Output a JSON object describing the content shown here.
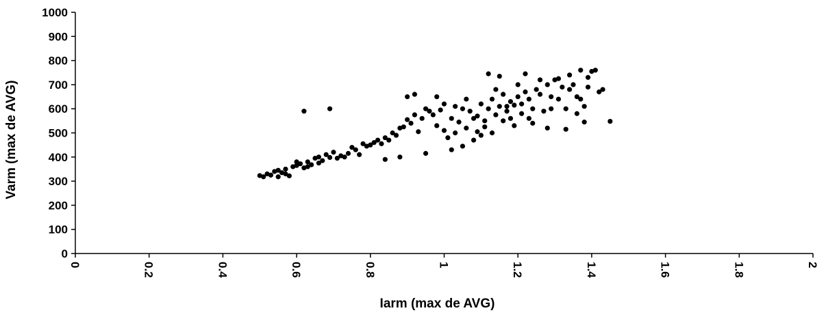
{
  "chart_data": {
    "type": "scatter",
    "title": "",
    "xlabel": "Iarm (max de AVG)",
    "ylabel": "Varm (max de AVG)",
    "xlim": [
      0,
      2
    ],
    "ylim": [
      0,
      1000
    ],
    "xticks": [
      "0",
      "0.2",
      "0.4",
      "0.6",
      "0.8",
      "1",
      "1.2",
      "1.4",
      "1.6",
      "1.8",
      "2"
    ],
    "yticks": [
      "0",
      "100",
      "200",
      "300",
      "400",
      "500",
      "600",
      "700",
      "800",
      "900",
      "1000"
    ],
    "grid": false,
    "legend": "none",
    "marker_color": "#000000",
    "points": [
      [
        0.5,
        323
      ],
      [
        0.51,
        318
      ],
      [
        0.52,
        330
      ],
      [
        0.53,
        325
      ],
      [
        0.54,
        340
      ],
      [
        0.55,
        318
      ],
      [
        0.56,
        335
      ],
      [
        0.57,
        350
      ],
      [
        0.58,
        322
      ],
      [
        0.59,
        360
      ],
      [
        0.6,
        365
      ],
      [
        0.61,
        372
      ],
      [
        0.62,
        355
      ],
      [
        0.63,
        380
      ],
      [
        0.64,
        368
      ],
      [
        0.65,
        395
      ],
      [
        0.66,
        400
      ],
      [
        0.67,
        385
      ],
      [
        0.68,
        410
      ],
      [
        0.69,
        398
      ],
      [
        0.7,
        420
      ],
      [
        0.72,
        405
      ],
      [
        0.74,
        415
      ],
      [
        0.75,
        440
      ],
      [
        0.76,
        430
      ],
      [
        0.78,
        455
      ],
      [
        0.8,
        450
      ],
      [
        0.82,
        470
      ],
      [
        0.84,
        480
      ],
      [
        0.86,
        500
      ],
      [
        0.88,
        520
      ],
      [
        0.9,
        555
      ],
      [
        0.92,
        575
      ],
      [
        0.94,
        560
      ],
      [
        0.95,
        600
      ],
      [
        0.96,
        590
      ],
      [
        0.98,
        530
      ],
      [
        1.0,
        510
      ],
      [
        1.01,
        480
      ],
      [
        1.02,
        560
      ],
      [
        1.03,
        610
      ],
      [
        1.04,
        545
      ],
      [
        1.05,
        600
      ],
      [
        1.06,
        520
      ],
      [
        1.07,
        590
      ],
      [
        1.08,
        560
      ],
      [
        1.09,
        505
      ],
      [
        1.1,
        620
      ],
      [
        1.11,
        550
      ],
      [
        1.12,
        600
      ],
      [
        1.13,
        640
      ],
      [
        1.14,
        575
      ],
      [
        1.15,
        610
      ],
      [
        1.16,
        660
      ],
      [
        1.17,
        590
      ],
      [
        1.18,
        630
      ],
      [
        1.19,
        615
      ],
      [
        1.2,
        650
      ],
      [
        1.21,
        580
      ],
      [
        1.22,
        670
      ],
      [
        1.23,
        640
      ],
      [
        1.24,
        600
      ],
      [
        1.25,
        680
      ],
      [
        1.26,
        660
      ],
      [
        1.27,
        590
      ],
      [
        1.28,
        700
      ],
      [
        1.29,
        650
      ],
      [
        1.3,
        720
      ],
      [
        1.31,
        640
      ],
      [
        1.32,
        690
      ],
      [
        1.33,
        600
      ],
      [
        1.34,
        740
      ],
      [
        1.35,
        700
      ],
      [
        1.36,
        650
      ],
      [
        1.37,
        760
      ],
      [
        1.38,
        610
      ],
      [
        1.39,
        730
      ],
      [
        1.4,
        755
      ],
      [
        1.42,
        670
      ],
      [
        1.45,
        548
      ],
      [
        0.62,
        590
      ],
      [
        0.69,
        600
      ],
      [
        0.84,
        390
      ],
      [
        0.88,
        400
      ],
      [
        0.9,
        650
      ],
      [
        0.92,
        660
      ],
      [
        0.95,
        415
      ],
      [
        1.02,
        430
      ],
      [
        1.05,
        445
      ],
      [
        1.12,
        745
      ],
      [
        1.15,
        735
      ],
      [
        1.22,
        745
      ],
      [
        1.28,
        520
      ],
      [
        1.33,
        515
      ],
      [
        1.38,
        545
      ],
      [
        1.36,
        580
      ],
      [
        1.18,
        560
      ],
      [
        1.08,
        470
      ],
      [
        0.98,
        650
      ],
      [
        1.24,
        540
      ],
      [
        0.55,
        345
      ],
      [
        0.57,
        330
      ],
      [
        0.6,
        380
      ],
      [
        0.63,
        360
      ],
      [
        0.66,
        375
      ],
      [
        0.71,
        395
      ],
      [
        0.73,
        400
      ],
      [
        0.77,
        410
      ],
      [
        0.79,
        445
      ],
      [
        0.81,
        460
      ],
      [
        0.83,
        455
      ],
      [
        0.85,
        470
      ],
      [
        0.87,
        490
      ],
      [
        0.89,
        525
      ],
      [
        0.91,
        540
      ],
      [
        0.93,
        505
      ],
      [
        0.97,
        575
      ],
      [
        0.99,
        595
      ],
      [
        1.0,
        620
      ],
      [
        1.03,
        500
      ],
      [
        1.06,
        640
      ],
      [
        1.09,
        570
      ],
      [
        1.11,
        525
      ],
      [
        1.14,
        680
      ],
      [
        1.17,
        610
      ],
      [
        1.2,
        700
      ],
      [
        1.23,
        560
      ],
      [
        1.26,
        720
      ],
      [
        1.29,
        600
      ],
      [
        1.31,
        725
      ],
      [
        1.34,
        680
      ],
      [
        1.37,
        640
      ],
      [
        1.39,
        690
      ],
      [
        1.41,
        760
      ],
      [
        1.43,
        680
      ],
      [
        1.21,
        620
      ],
      [
        1.19,
        530
      ],
      [
        1.16,
        550
      ],
      [
        1.13,
        500
      ],
      [
        1.1,
        490
      ]
    ]
  }
}
